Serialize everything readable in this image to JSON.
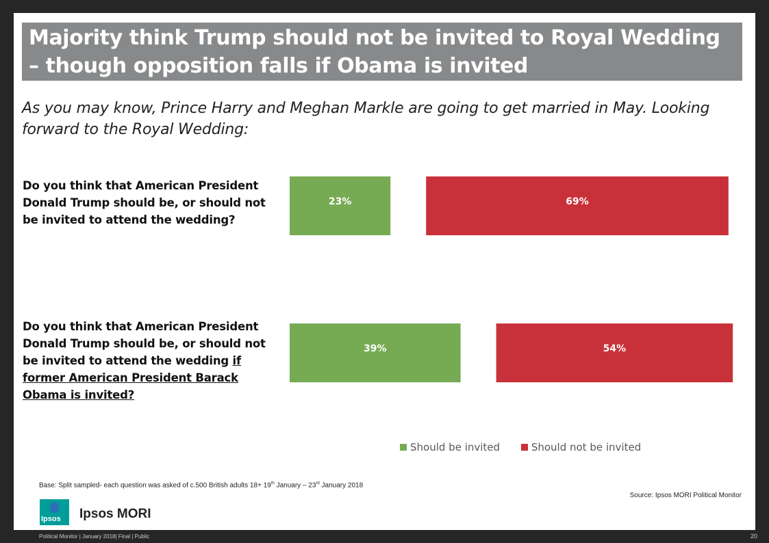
{
  "title": "Majority think Trump should not be invited to Royal Wedding – though opposition falls if Obama is invited",
  "subtitle": "As you may know, Prince Harry and Meghan Markle are going to get married in May. Looking forward to the Royal Wedding:",
  "questions": [
    {
      "text": "Do you think that American President Donald Trump should be, or should not be invited to attend the wedding?"
    },
    {
      "text_plain": "Do you think that American President Donald Trump should be, or should not be invited to attend the wedding ",
      "text_underlined": "if former American President Barack Obama is invited?"
    }
  ],
  "chart_data": {
    "type": "bar",
    "orientation": "horizontal",
    "categories": [
      "Do you think that American President Donald Trump should be, or should not be invited to attend the wedding?",
      "Do you think that American President Donald Trump should be, or should not be invited to attend the wedding if former American President Barack Obama is invited?"
    ],
    "series": [
      {
        "name": "Should be invited",
        "values": [
          23,
          39
        ],
        "color": "#76ab53"
      },
      {
        "name": "Should not be invited",
        "values": [
          69,
          54
        ],
        "color": "#c9313a"
      }
    ],
    "value_suffix": "%",
    "legend_position": "bottom",
    "grid": false
  },
  "legend": {
    "items": [
      "Should be invited",
      "Should not be invited"
    ]
  },
  "base_note": {
    "prefix": "Base:  Split sampled- each question was asked of c.500 British adults 18+ 19",
    "sup1": "th",
    "mid": " January – 23",
    "sup2": "rd",
    "suffix": " January 2018"
  },
  "source": "Source: Ipsos MORI Political Monitor",
  "logo_text": "Ipsos",
  "company": "Ipsos MORI",
  "footer": "Political Monitor | January 2018| Final | Public",
  "page_number": "20"
}
